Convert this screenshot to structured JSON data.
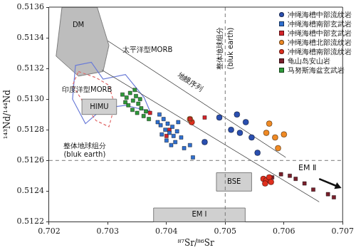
{
  "chart_data": {
    "type": "scatter",
    "xlabel": "⁸⁷Sr/⁸⁶Sr",
    "ylabel": "¹⁴³Nd/¹⁴⁴Nd",
    "xlim": [
      0.702,
      0.707
    ],
    "xticks": [
      0.702,
      0.703,
      0.704,
      0.705,
      0.706,
      0.707
    ],
    "ylim": [
      0.5122,
      0.5136
    ],
    "yticks": [
      0.5122,
      0.5124,
      0.5126,
      0.5128,
      {
        "value": 0.513,
        "label": "0.5130"
      },
      0.5132,
      0.5134,
      0.5136
    ],
    "grid": false,
    "legend": "upper right",
    "series": [
      {
        "name": "冲绳海槽中部流纹岩",
        "color": "#2a4fb0",
        "marker": "circle",
        "x": [
          0.7049,
          0.7051,
          0.70525,
          0.70545,
          0.70535,
          0.7052,
          0.70555,
          0.70465
        ],
        "values": [
          0.51288,
          0.5128,
          0.51278,
          0.51275,
          0.51285,
          0.5129,
          0.51265,
          0.51272
        ]
      },
      {
        "name": "冲绳海槽南部玄武岩",
        "color": "#2f6fd0",
        "marker": "square",
        "x": [
          0.70385,
          0.7039,
          0.70395,
          0.70398,
          0.70402,
          0.70405,
          0.7041,
          0.70412,
          0.70418,
          0.70392,
          0.704,
          0.70408,
          0.70415,
          0.70425,
          0.7043,
          0.70388,
          0.7042,
          0.7044,
          0.70445
        ],
        "values": [
          0.51285,
          0.51283,
          0.51287,
          0.5128,
          0.51284,
          0.51278,
          0.51282,
          0.51276,
          0.51279,
          0.51277,
          0.51273,
          0.5127,
          0.51272,
          0.51275,
          0.51268,
          0.5129,
          0.51285,
          0.5127,
          0.51262
        ]
      },
      {
        "name": "冲绳海槽中部玄武岩",
        "color": "#d4232a",
        "marker": "square",
        "x": [
          0.70372,
          0.70405,
          0.7044,
          0.70465,
          0.704
        ],
        "values": [
          0.51291,
          0.5128,
          0.51287,
          0.51288,
          0.51276
        ]
      },
      {
        "name": "冲绳海槽北部流纹岩",
        "color": "#f08a24",
        "marker": "circle",
        "x": [
          0.7044,
          0.7057,
          0.70585,
          0.706,
          0.7059,
          0.70575
        ],
        "values": [
          0.51287,
          0.51278,
          0.51275,
          0.51277,
          0.51268,
          0.51284
        ]
      },
      {
        "name": "冲绳海槽南部流纹岩",
        "color": "#e0301e",
        "marker": "circle",
        "x": [
          0.70565,
          0.7057,
          0.70575,
          0.70568,
          0.70578,
          0.70443
        ],
        "values": [
          0.51248,
          0.51247,
          0.51249,
          0.51245,
          0.51246,
          0.51285
        ]
      },
      {
        "name": "龟山岛安山岩",
        "color": "#7a1f2b",
        "marker": "square",
        "x": [
          0.7058,
          0.70595,
          0.7061,
          0.7062,
          0.70635,
          0.7065,
          0.70675,
          0.70685
        ],
        "values": [
          0.51249,
          0.51251,
          0.5125,
          0.51248,
          0.51245,
          0.51241,
          0.51238,
          0.51236
        ]
      },
      {
        "name": "马努斯海盆玄武岩",
        "color": "#2e9a3a",
        "marker": "square",
        "x": [
          0.70325,
          0.70332,
          0.70338,
          0.70343,
          0.70348,
          0.70352,
          0.70335,
          0.70342,
          0.7035,
          0.70357,
          0.70361,
          0.7033,
          0.70355,
          0.70365,
          0.7037,
          0.70346
        ],
        "values": [
          0.51303,
          0.51301,
          0.51304,
          0.51299,
          0.51302,
          0.51297,
          0.51296,
          0.51293,
          0.51291,
          0.51294,
          0.51289,
          0.51298,
          0.513,
          0.51292,
          0.51287,
          0.51306
        ]
      }
    ],
    "regions": [
      {
        "label": "DM",
        "color": "#bdbdbd",
        "label_at": [
          0.7024,
          0.51348
        ],
        "polygon": [
          [
            0.70222,
            0.5136
          ],
          [
            0.70282,
            0.5136
          ],
          [
            0.70302,
            0.51335
          ],
          [
            0.70292,
            0.51318
          ],
          [
            0.7025,
            0.51315
          ],
          [
            0.70212,
            0.51328
          ]
        ]
      },
      {
        "label": "太平洋型MORB",
        "color": "#6a7bd8",
        "line_style": "solid",
        "label_at": [
          0.70325,
          0.51332
        ],
        "polygon": [
          [
            0.70245,
            0.51322
          ],
          [
            0.70272,
            0.51324
          ],
          [
            0.70292,
            0.51313
          ],
          [
            0.7033,
            0.51316
          ],
          [
            0.70362,
            0.51301
          ],
          [
            0.70372,
            0.51292
          ],
          [
            0.7033,
            0.51296
          ],
          [
            0.70292,
            0.51294
          ],
          [
            0.70262,
            0.51284
          ],
          [
            0.7024,
            0.513
          ]
        ]
      },
      {
        "label": "印度洋型MORB",
        "color": "#e06a6a",
        "line_style": "dashed",
        "label_at": [
          0.70222,
          0.51306
        ],
        "polygon": [
          [
            0.7025,
            0.51318
          ],
          [
            0.7028,
            0.51314
          ],
          [
            0.70302,
            0.51309
          ],
          [
            0.70312,
            0.51296
          ],
          [
            0.70302,
            0.51282
          ],
          [
            0.7028,
            0.51286
          ],
          [
            0.7026,
            0.51297
          ],
          [
            0.7024,
            0.51309
          ]
        ]
      },
      {
        "label": "HIMU",
        "color": "#d0d0d0",
        "polygon": [
          [
            0.70256,
            0.5129
          ],
          [
            0.70315,
            0.5129
          ],
          [
            0.70315,
            0.513
          ],
          [
            0.70256,
            0.513
          ]
        ]
      },
      {
        "label": "BSE",
        "color": "#d0d0d0",
        "polygon": [
          [
            0.70485,
            0.5124
          ],
          [
            0.70545,
            0.5124
          ],
          [
            0.70545,
            0.51252
          ],
          [
            0.70485,
            0.51252
          ]
        ]
      },
      {
        "label": "EM Ⅰ",
        "color": "#d0d0d0",
        "polygon": [
          [
            0.70378,
            0.5122
          ],
          [
            0.70534,
            0.5122
          ],
          [
            0.70534,
            0.51229
          ],
          [
            0.70378,
            0.51229
          ]
        ]
      }
    ],
    "mantle_array": {
      "label": "地幔序列",
      "label_at": [
        0.7044,
        0.51311
      ],
      "lines": [
        [
          [
            0.703,
            0.51338
          ],
          [
            0.70603,
            0.51262
          ]
        ],
        [
          [
            0.7029,
            0.51319
          ],
          [
            0.7066,
            0.51233
          ]
        ]
      ]
    },
    "bulk_earth": {
      "label": "整体地球组分",
      "sublabel": "(bluk earth)",
      "x": 0.705,
      "y": 0.5126
    },
    "annotations": [
      {
        "text": "EM Ⅱ",
        "x": 0.7064,
        "y": 0.51255
      }
    ],
    "arrow": {
      "from": [
        0.7066,
        0.51248
      ],
      "to": [
        0.70698,
        0.51242
      ]
    }
  }
}
